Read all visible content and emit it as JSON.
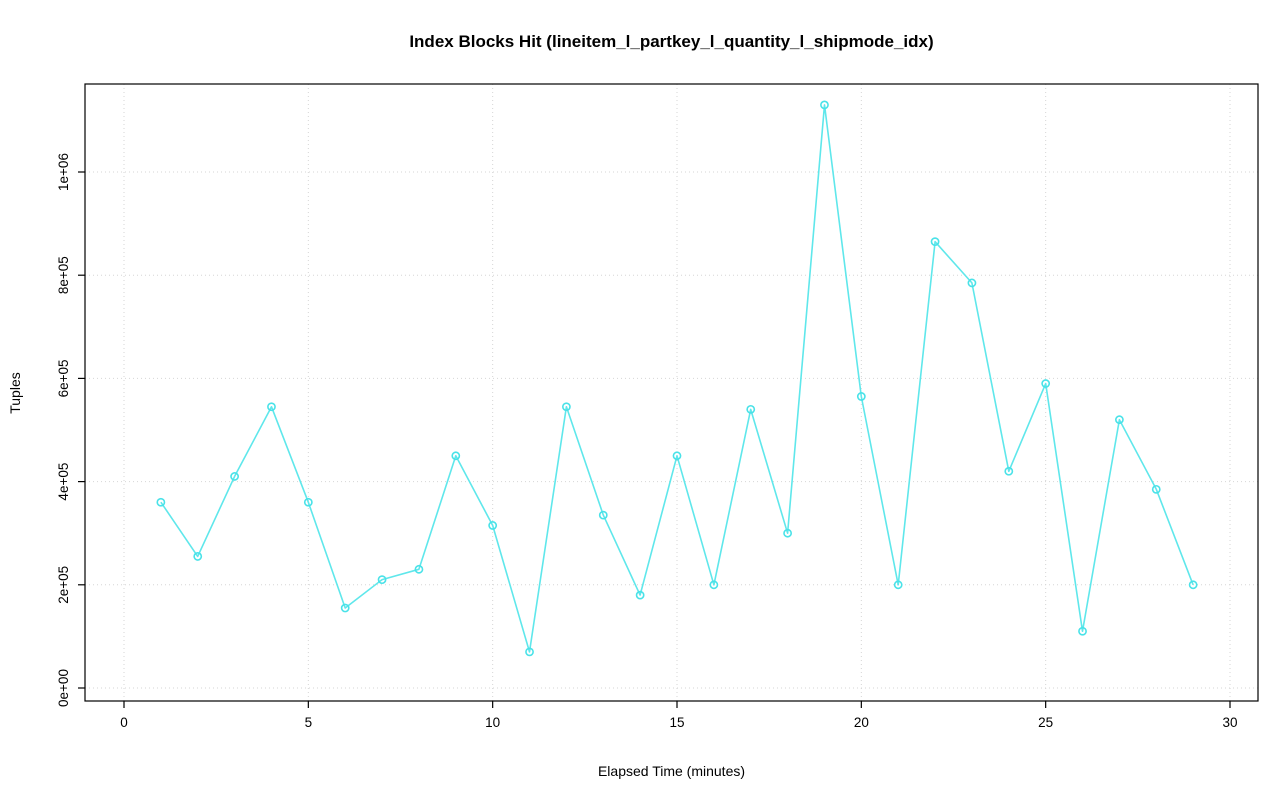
{
  "page": {
    "background": "#ffffff"
  },
  "chart": {
    "title": "Index Blocks Hit (lineitem_l_partkey_l_quantity_l_shipmode_idx)",
    "xlabel": "Elapsed Time (minutes)",
    "ylabel": "Tuples"
  },
  "chart_data": {
    "type": "line",
    "title": "Index Blocks Hit (lineitem_l_partkey_l_quantity_l_shipmode_idx)",
    "xlabel": "Elapsed Time (minutes)",
    "ylabel": "Tuples",
    "x": [
      1,
      2,
      3,
      4,
      5,
      6,
      7,
      8,
      9,
      10,
      11,
      12,
      13,
      14,
      15,
      16,
      17,
      18,
      19,
      20,
      21,
      22,
      23,
      24,
      25,
      26,
      27,
      28,
      29
    ],
    "y": [
      360000,
      255000,
      410000,
      545000,
      360000,
      155000,
      210000,
      230000,
      450000,
      315000,
      70000,
      545000,
      335000,
      180000,
      450000,
      200000,
      540000,
      300000,
      1130000,
      565000,
      200000,
      865000,
      785000,
      420000,
      590000,
      110000,
      520000,
      385000,
      200000
    ],
    "xlim": [
      0,
      30
    ],
    "ylim": [
      0,
      1000000
    ],
    "xticks": {
      "values": [
        0,
        5,
        10,
        15,
        20,
        25,
        30
      ],
      "labels": [
        "0",
        "5",
        "10",
        "15",
        "20",
        "25",
        "30"
      ]
    },
    "yticks": {
      "values": [
        0,
        200000,
        400000,
        600000,
        800000,
        1000000
      ],
      "labels": [
        "0e+00",
        "2e+05",
        "4e+05",
        "6e+05",
        "8e+05",
        "1e+06"
      ]
    },
    "grid": true,
    "grid_style": "dotted",
    "legend": "none",
    "marker": "open-circle",
    "colors": {
      "line": "#5FE7EB",
      "marker": "#49E2E8",
      "grid": "#D6D6D6",
      "axis": "#000000"
    }
  }
}
